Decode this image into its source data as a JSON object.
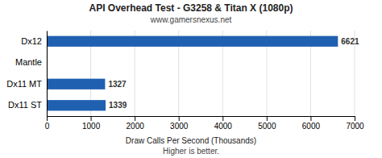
{
  "chart_data": {
    "type": "bar",
    "orientation": "horizontal",
    "title": "API Overhead Test - G3258 & Titan X (1080p)",
    "subtitle": "www.gamersnexus.net",
    "xlabel": "Draw Calls Per Second (Thousands)",
    "annotation": "Higher is better.",
    "categories": [
      "Dx12",
      "Mantle",
      "Dx11 MT",
      "Dx11 ST"
    ],
    "values": [
      6621,
      0,
      1327,
      1339
    ],
    "value_labels": [
      "6621",
      null,
      "1327",
      "1339"
    ],
    "data_labels": true,
    "color": "#2060b0",
    "xlim": [
      0,
      7000
    ],
    "xticks": [
      0,
      1000,
      2000,
      3000,
      4000,
      5000,
      6000,
      7000
    ],
    "grid": true
  }
}
